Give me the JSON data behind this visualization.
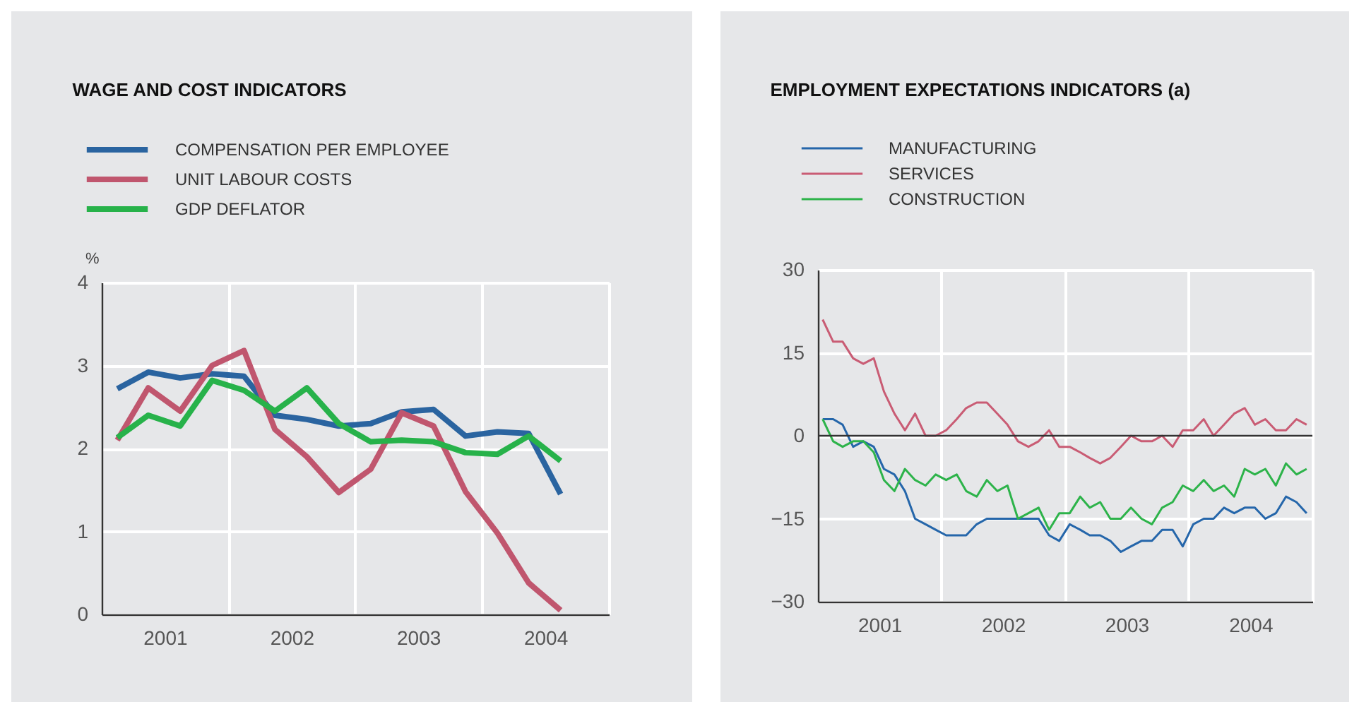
{
  "chart_data": [
    {
      "type": "line",
      "title": "WAGE AND COST INDICATORS",
      "ylabel": "%",
      "x": [
        "2001-02-15",
        "2001-05-15",
        "2001-08-15",
        "2001-11-15",
        "2002-02-15",
        "2002-05-15",
        "2002-08-15",
        "2002-11-15",
        "2003-02-15",
        "2003-05-15",
        "2003-08-15",
        "2003-11-15",
        "2004-02-15",
        "2004-05-15",
        "2004-08-15"
      ],
      "series": [
        {
          "name": "COMPENSATION PER EMPLOYEE",
          "color": "#2a64a0",
          "values": [
            2.72,
            2.92,
            2.85,
            2.9,
            2.87,
            2.4,
            2.35,
            2.27,
            2.3,
            2.44,
            2.47,
            2.15,
            2.2,
            2.18,
            1.45
          ]
        },
        {
          "name": "UNIT LABOUR COSTS",
          "color": "#c0566e",
          "values": [
            2.1,
            2.73,
            2.45,
            3.0,
            3.18,
            2.23,
            1.9,
            1.47,
            1.75,
            2.43,
            2.27,
            1.48,
            0.98,
            0.38,
            0.05
          ]
        },
        {
          "name": "GDP DEFLATOR",
          "color": "#27b24a",
          "values": [
            2.13,
            2.4,
            2.27,
            2.82,
            2.7,
            2.45,
            2.73,
            2.3,
            2.08,
            2.1,
            2.08,
            1.95,
            1.93,
            2.15,
            1.85
          ]
        }
      ],
      "xlim": [
        "2001-01-01",
        "2005-01-01"
      ],
      "xticks": [
        {
          "value": "2001-07-02",
          "label": "2001"
        },
        {
          "value": "2002-01-01",
          "label": null
        },
        {
          "value": "2002-07-02",
          "label": "2002"
        },
        {
          "value": "2003-01-01",
          "label": null
        },
        {
          "value": "2003-07-02",
          "label": "2003"
        },
        {
          "value": "2004-01-01",
          "label": null
        },
        {
          "value": "2004-07-02",
          "label": "2004"
        },
        {
          "value": "2005-01-01",
          "label": null
        }
      ],
      "ylim": [
        0,
        4
      ],
      "yticks": [
        0,
        1,
        2,
        3,
        4
      ],
      "grid": true,
      "legend": "top left",
      "marker": "none",
      "line_style": "solid"
    },
    {
      "type": "line",
      "title": "EMPLOYMENT EXPECTATIONS INDICATORS (a)",
      "x": [
        "2001-01-15",
        "2001-02-15",
        "2001-03-15",
        "2001-04-15",
        "2001-05-15",
        "2001-06-15",
        "2001-07-15",
        "2001-08-15",
        "2001-09-15",
        "2001-10-15",
        "2001-11-15",
        "2001-12-15",
        "2002-01-15",
        "2002-02-15",
        "2002-03-15",
        "2002-04-15",
        "2002-05-15",
        "2002-06-15",
        "2002-07-15",
        "2002-08-15",
        "2002-09-15",
        "2002-10-15",
        "2002-11-15",
        "2002-12-15",
        "2003-01-15",
        "2003-02-15",
        "2003-03-15",
        "2003-04-15",
        "2003-05-15",
        "2003-06-15",
        "2003-07-15",
        "2003-08-15",
        "2003-09-15",
        "2003-10-15",
        "2003-11-15",
        "2003-12-15",
        "2004-01-15",
        "2004-02-15",
        "2004-03-15",
        "2004-04-15",
        "2004-05-15",
        "2004-06-15",
        "2004-07-15",
        "2004-08-15",
        "2004-09-15",
        "2004-10-15",
        "2004-11-15",
        "2004-12-15"
      ],
      "series": [
        {
          "name": "MANUFACTURING",
          "color": "#2566aa",
          "values": [
            3,
            3,
            2,
            -2,
            -1,
            -2,
            -6,
            -7,
            -10,
            -15,
            -16,
            -17,
            -18,
            -18,
            -18,
            -16,
            -15,
            -15,
            -15,
            -15,
            -15,
            -15,
            -18,
            -19,
            -16,
            -17,
            -18,
            -18,
            -19,
            -21,
            -20,
            -19,
            -19,
            -17,
            -17,
            -20,
            -16,
            -15,
            -15,
            -13,
            -14,
            -13,
            -13,
            -15,
            -14,
            -11,
            -12,
            -14
          ]
        },
        {
          "name": "SERVICES",
          "color": "#c95c74",
          "values": [
            21,
            17,
            17,
            14,
            13,
            14,
            8,
            4,
            1,
            4,
            0,
            0,
            1,
            3,
            5,
            6,
            6,
            4,
            2,
            -1,
            -2,
            -1,
            1,
            -2,
            -2,
            -3,
            -4,
            -5,
            -4,
            -2,
            0,
            -1,
            -1,
            0,
            -2,
            1,
            1,
            3,
            0,
            2,
            4,
            5,
            2,
            3,
            1,
            1,
            3,
            2
          ]
        },
        {
          "name": "CONSTRUCTION",
          "color": "#2db34a",
          "values": [
            3,
            -1,
            -2,
            -1,
            -1,
            -3,
            -8,
            -10,
            -6,
            -8,
            -9,
            -7,
            -8,
            -7,
            -10,
            -11,
            -8,
            -10,
            -9,
            -15,
            -14,
            -13,
            -17,
            -14,
            -14,
            -11,
            -13,
            -12,
            -15,
            -15,
            -13,
            -15,
            -16,
            -13,
            -12,
            -9,
            -10,
            -8,
            -10,
            -9,
            -11,
            -6,
            -7,
            -6,
            -9,
            -5,
            -7,
            -6
          ]
        }
      ],
      "xlim": [
        "2001-01-01",
        "2005-01-01"
      ],
      "xticks": [
        {
          "value": "2001-07-02",
          "label": "2001"
        },
        {
          "value": "2002-01-01",
          "label": null
        },
        {
          "value": "2002-07-02",
          "label": "2002"
        },
        {
          "value": "2003-01-01",
          "label": null
        },
        {
          "value": "2003-07-02",
          "label": "2003"
        },
        {
          "value": "2004-01-01",
          "label": null
        },
        {
          "value": "2004-07-02",
          "label": "2004"
        },
        {
          "value": "2005-01-01",
          "label": null
        }
      ],
      "ylim": [
        -30,
        30
      ],
      "yticks": [
        -30,
        -15,
        0,
        15,
        30
      ],
      "ref_lines": [
        {
          "axis": "y",
          "value": 0,
          "color": "#333333"
        }
      ],
      "grid": true,
      "legend": "top left",
      "marker": "none",
      "line_style": "solid"
    }
  ]
}
